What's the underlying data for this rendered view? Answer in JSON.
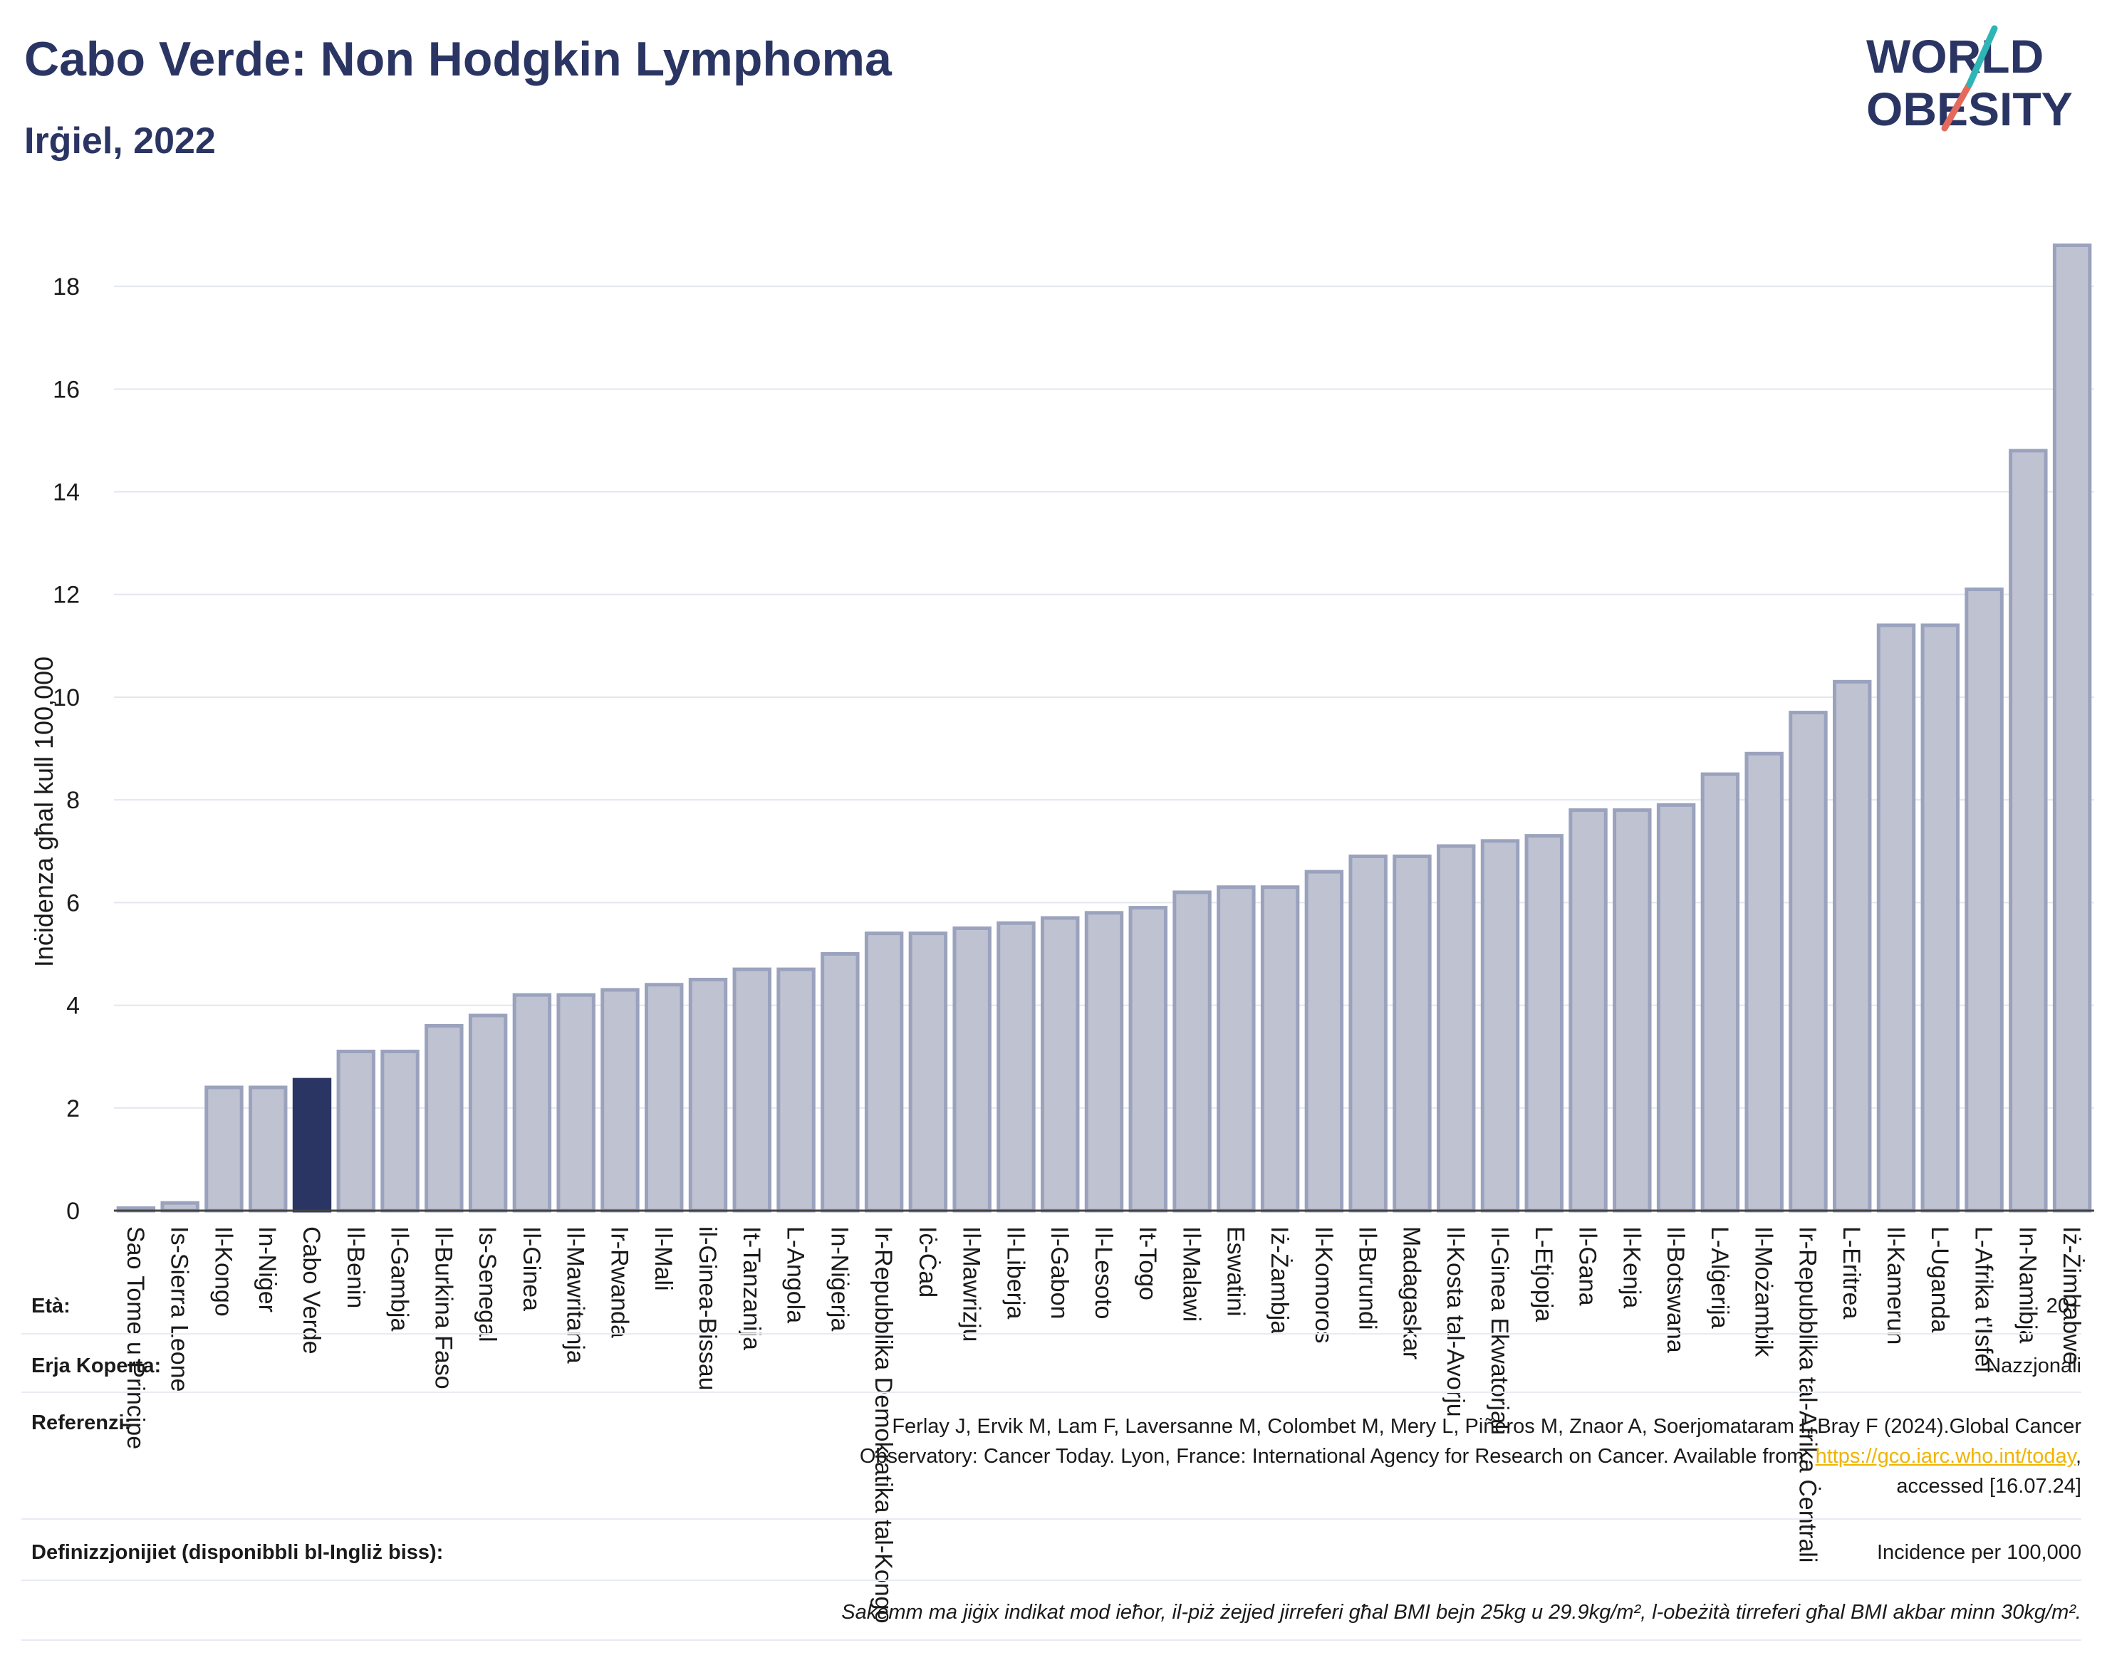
{
  "title": "Cabo Verde: Non Hodgkin Lymphoma",
  "subtitle": "Irġiel, 2022",
  "logo": {
    "line1": "WORLD",
    "line2": "OBESITY"
  },
  "chart_data": {
    "type": "bar",
    "ylabel": "Inċidenza għal kull 100,000",
    "xlabel": "",
    "ylim": [
      0,
      19
    ],
    "yticks": [
      0,
      2,
      4,
      6,
      8,
      10,
      12,
      14,
      16,
      18
    ],
    "grid": true,
    "highlight": "Cabo Verde",
    "colors": {
      "bar": "#bfc3d1",
      "bar_edge": "#9aa2bd",
      "highlight": "#2a3563"
    },
    "categories": [
      "Sao Tome u Principe",
      "Is-Sierra Leone",
      "Il-Kongo",
      "In-Niġer",
      "Cabo Verde",
      "Il-Benin",
      "Il-Gambja",
      "Il-Burkina Faso",
      "Is-Senegal",
      "Il-Ginea",
      "Il-Mawritanja",
      "Ir-Rwanda",
      "Il-Mali",
      "il-Ginea-Bissau",
      "It-Tanzanija",
      "L-Angola",
      "In-Niġerja",
      "Ir-Repubblika Demokratika tal-Kongo",
      "Iċ-Ċad",
      "Il-Mawrizju",
      "Il-Liberja",
      "Il-Gabon",
      "Il-Lesoto",
      "It-Togo",
      "Il-Malawi",
      "Eswatini",
      "Iż-Żambja",
      "Il-Komoros",
      "Il-Burundi",
      "Madagaskar",
      "Il-Kosta tal-Avorju",
      "Il-Ginea Ekwatorjali",
      "L-Etjopja",
      "Il-Gana",
      "Il-Kenja",
      "Il-Botswana",
      "L-Alġerija",
      "Il-Możambik",
      "Ir-Repubblika tal-Afrika Ċentrali",
      "L-Eritrea",
      "Il-Kamerun",
      "L-Uganda",
      "L-Afrika t'Isfel",
      "In-Namibja",
      "Iż-Żimbabwe"
    ],
    "values": [
      0.05,
      0.15,
      2.4,
      2.4,
      2.55,
      3.1,
      3.1,
      3.6,
      3.8,
      4.2,
      4.2,
      4.3,
      4.4,
      4.5,
      4.7,
      4.7,
      5.0,
      5.4,
      5.4,
      5.5,
      5.6,
      5.7,
      5.8,
      5.9,
      6.2,
      6.3,
      6.3,
      6.6,
      6.9,
      6.9,
      7.1,
      7.2,
      7.3,
      7.8,
      7.8,
      7.9,
      8.5,
      8.9,
      9.7,
      10.3,
      11.4,
      11.4,
      12.1,
      14.8,
      18.8
    ]
  },
  "footer": {
    "age_label": "Età:",
    "age_value": "20+",
    "coverage_label": "Erja Koperta:",
    "coverage_value": "Nazzjonali",
    "ref_label": "Referenzi:",
    "ref_line1": "Ferlay J, Ervik M, Lam F, Laversanne M, Colombet M, Mery L, Piñeros M, Znaor A, Soerjomataram I, Bray F (2024).Global Cancer",
    "ref_line2_pre": "Observatory: Cancer Today. Lyon, France: International Agency for Research on Cancer. Available from: ",
    "ref_link": "https://gco.iarc.who.int/today",
    "ref_line2_post": ",",
    "ref_line3": "accessed [16.07.24]",
    "def_label": "Definizzjonijiet (disponibbli bl-Ingliż biss):",
    "def_value": "Incidence per 100,000",
    "note": "Sakemm ma jiġix indikat mod ieħor, il-piż żejjed jirreferi għal BMI bejn 25kg u 29.9kg/m², l-obeżità tirreferi għal BMI akbar minn 30kg/m²."
  }
}
